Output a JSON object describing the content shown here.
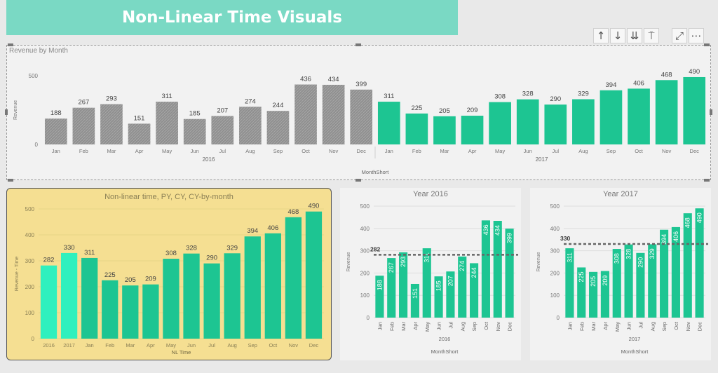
{
  "title": "Non-Linear Time Visuals",
  "toolbar": {
    "icons": [
      "arrow-up-icon",
      "arrow-down-icon",
      "double-arrow-down-icon",
      "expand-hierarchy-icon",
      "focus-mode-icon",
      "more-options-icon"
    ],
    "glyphs": [
      "↑",
      "↓",
      "⇊",
      "⍑",
      "⤢",
      "⋯"
    ]
  },
  "colors": {
    "gray": "#8f8f8f",
    "green": "#1dc592",
    "light_green": "#2ff0be",
    "yellow_panel": "#f5df92",
    "dashed_line": "#666666"
  },
  "chart_data": [
    {
      "id": "revenue-by-month",
      "type": "bar",
      "title": "Revenue by Month",
      "xlabel": "MonthShort",
      "ylabel": "Revenue",
      "ylim": [
        0,
        500
      ],
      "yticks": [
        0,
        500
      ],
      "groups": [
        "2016",
        "2017"
      ],
      "categories": [
        "Jan",
        "Feb",
        "Mar",
        "Apr",
        "May",
        "Jun",
        "Jul",
        "Aug",
        "Sep",
        "Oct",
        "Nov",
        "Dec",
        "Jan",
        "Feb",
        "Mar",
        "Apr",
        "May",
        "Jun",
        "Jul",
        "Aug",
        "Sep",
        "Oct",
        "Nov",
        "Dec"
      ],
      "values": [
        188,
        267,
        293,
        151,
        311,
        185,
        207,
        274,
        244,
        436,
        434,
        399,
        311,
        225,
        205,
        209,
        308,
        328,
        290,
        329,
        394,
        406,
        468,
        490
      ],
      "bar_group": [
        0,
        0,
        0,
        0,
        0,
        0,
        0,
        0,
        0,
        0,
        0,
        0,
        1,
        1,
        1,
        1,
        1,
        1,
        1,
        1,
        1,
        1,
        1,
        1
      ]
    },
    {
      "id": "non-linear-time",
      "type": "bar",
      "title": "Non-linear time, PY, CY, CY-by-month",
      "xlabel": "NL Time",
      "ylabel": "Revenue - Time",
      "ylim": [
        0,
        500
      ],
      "yticks": [
        0,
        100,
        200,
        300,
        400,
        500
      ],
      "categories": [
        "2016",
        "2017",
        "Jan",
        "Feb",
        "Mar",
        "Apr",
        "May",
        "Jun",
        "Jul",
        "Aug",
        "Sep",
        "Oct",
        "Nov",
        "Dec"
      ],
      "values": [
        282,
        330,
        311,
        225,
        205,
        209,
        308,
        328,
        290,
        329,
        394,
        406,
        468,
        490
      ]
    },
    {
      "id": "year-2016",
      "type": "bar",
      "title": "Year 2016",
      "xlabel": "MonthShort",
      "ylabel": "Revenue",
      "group_label": "2016",
      "ylim": [
        0,
        500
      ],
      "yticks": [
        0,
        100,
        200,
        300,
        400,
        500
      ],
      "reference_line": 282,
      "categories": [
        "Jan",
        "Feb",
        "Mar",
        "Apr",
        "May",
        "Jun",
        "Jul",
        "Aug",
        "Sep",
        "Oct",
        "Nov",
        "Dec"
      ],
      "values": [
        188,
        267,
        293,
        151,
        311,
        185,
        207,
        274,
        244,
        436,
        434,
        399
      ]
    },
    {
      "id": "year-2017",
      "type": "bar",
      "title": "Year 2017",
      "xlabel": "MonthShort",
      "ylabel": "Revenue",
      "group_label": "2017",
      "ylim": [
        0,
        500
      ],
      "yticks": [
        0,
        100,
        200,
        300,
        400,
        500
      ],
      "reference_line": 330,
      "categories": [
        "Jan",
        "Feb",
        "Mar",
        "Apr",
        "May",
        "Jun",
        "Jul",
        "Aug",
        "Sep",
        "Oct",
        "Nov",
        "Dec"
      ],
      "values": [
        311,
        225,
        205,
        209,
        308,
        328,
        290,
        329,
        394,
        406,
        468,
        490
      ]
    }
  ]
}
